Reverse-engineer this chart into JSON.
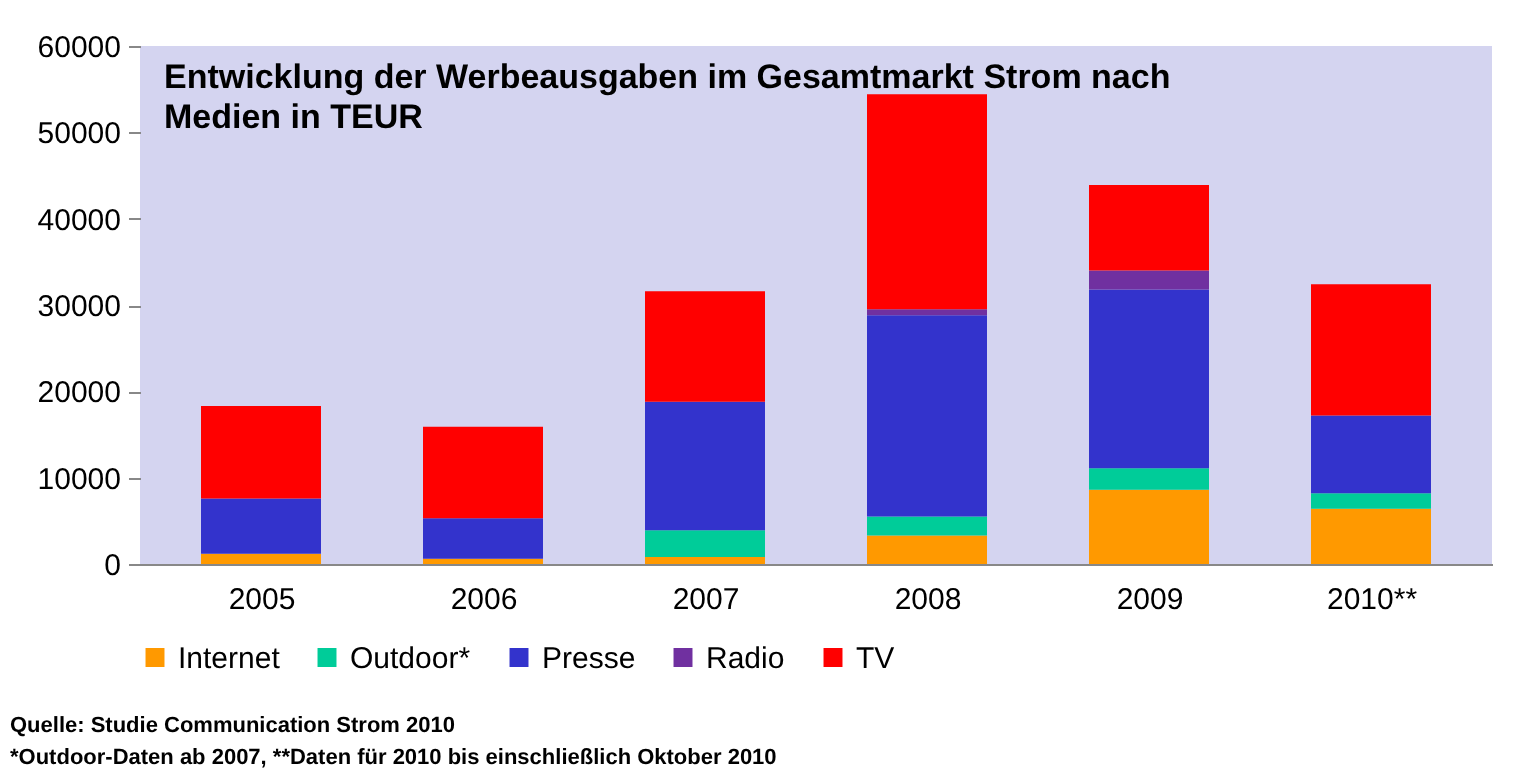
{
  "chart_data": {
    "type": "bar",
    "stacked": true,
    "title": [
      "Entwicklung der Werbeausgaben im Gesamtmarkt Strom nach",
      "Medien in TEUR"
    ],
    "categories": [
      "2005",
      "2006",
      "2007",
      "2008",
      "2009",
      "2010**"
    ],
    "series": [
      {
        "name": "Internet",
        "color": "#ff9900",
        "values": [
          1200,
          600,
          800,
          3300,
          8600,
          6400
        ]
      },
      {
        "name": "Outdoor*",
        "color": "#00cc99",
        "values": [
          null,
          null,
          3100,
          2200,
          2500,
          1800
        ]
      },
      {
        "name": "Presse",
        "color": "#3333cc",
        "values": [
          6400,
          4700,
          14900,
          23300,
          20700,
          9000
        ]
      },
      {
        "name": "Radio",
        "color": "#7030a0",
        "values": [
          null,
          null,
          null,
          700,
          2200,
          null
        ]
      },
      {
        "name": "TV",
        "color": "#ff0000",
        "values": [
          10700,
          10600,
          12800,
          24900,
          9900,
          15200
        ]
      }
    ],
    "ylim": [
      0,
      60000
    ],
    "yticks": [
      0,
      10000,
      20000,
      30000,
      40000,
      50000,
      60000
    ],
    "grid": false,
    "legend": "bottom",
    "annotations": [
      "Quelle: Studie Communication Strom 2010",
      "*Outdoor-Daten ab 2007, **Daten für 2010 bis einschließlich Oktober 2010"
    ]
  }
}
